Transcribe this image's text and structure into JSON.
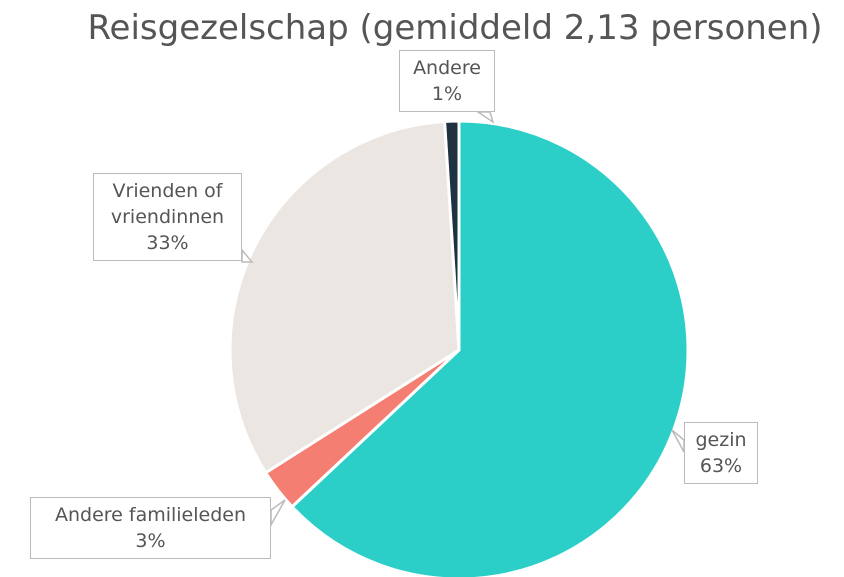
{
  "chart_data": {
    "type": "pie",
    "title": "Reisgezelschap (gemiddeld 2,13 personen)",
    "categories": [
      "gezin",
      "Andere familieleden",
      "Vrienden of vriendinnen",
      "Andere"
    ],
    "values": [
      63,
      3,
      33,
      1
    ],
    "value_labels": [
      "63%",
      "3%",
      "33%",
      "1%"
    ],
    "colors": [
      "#2bcfc8",
      "#f47e72",
      "#ebe6e1",
      "#1f3242"
    ]
  }
}
